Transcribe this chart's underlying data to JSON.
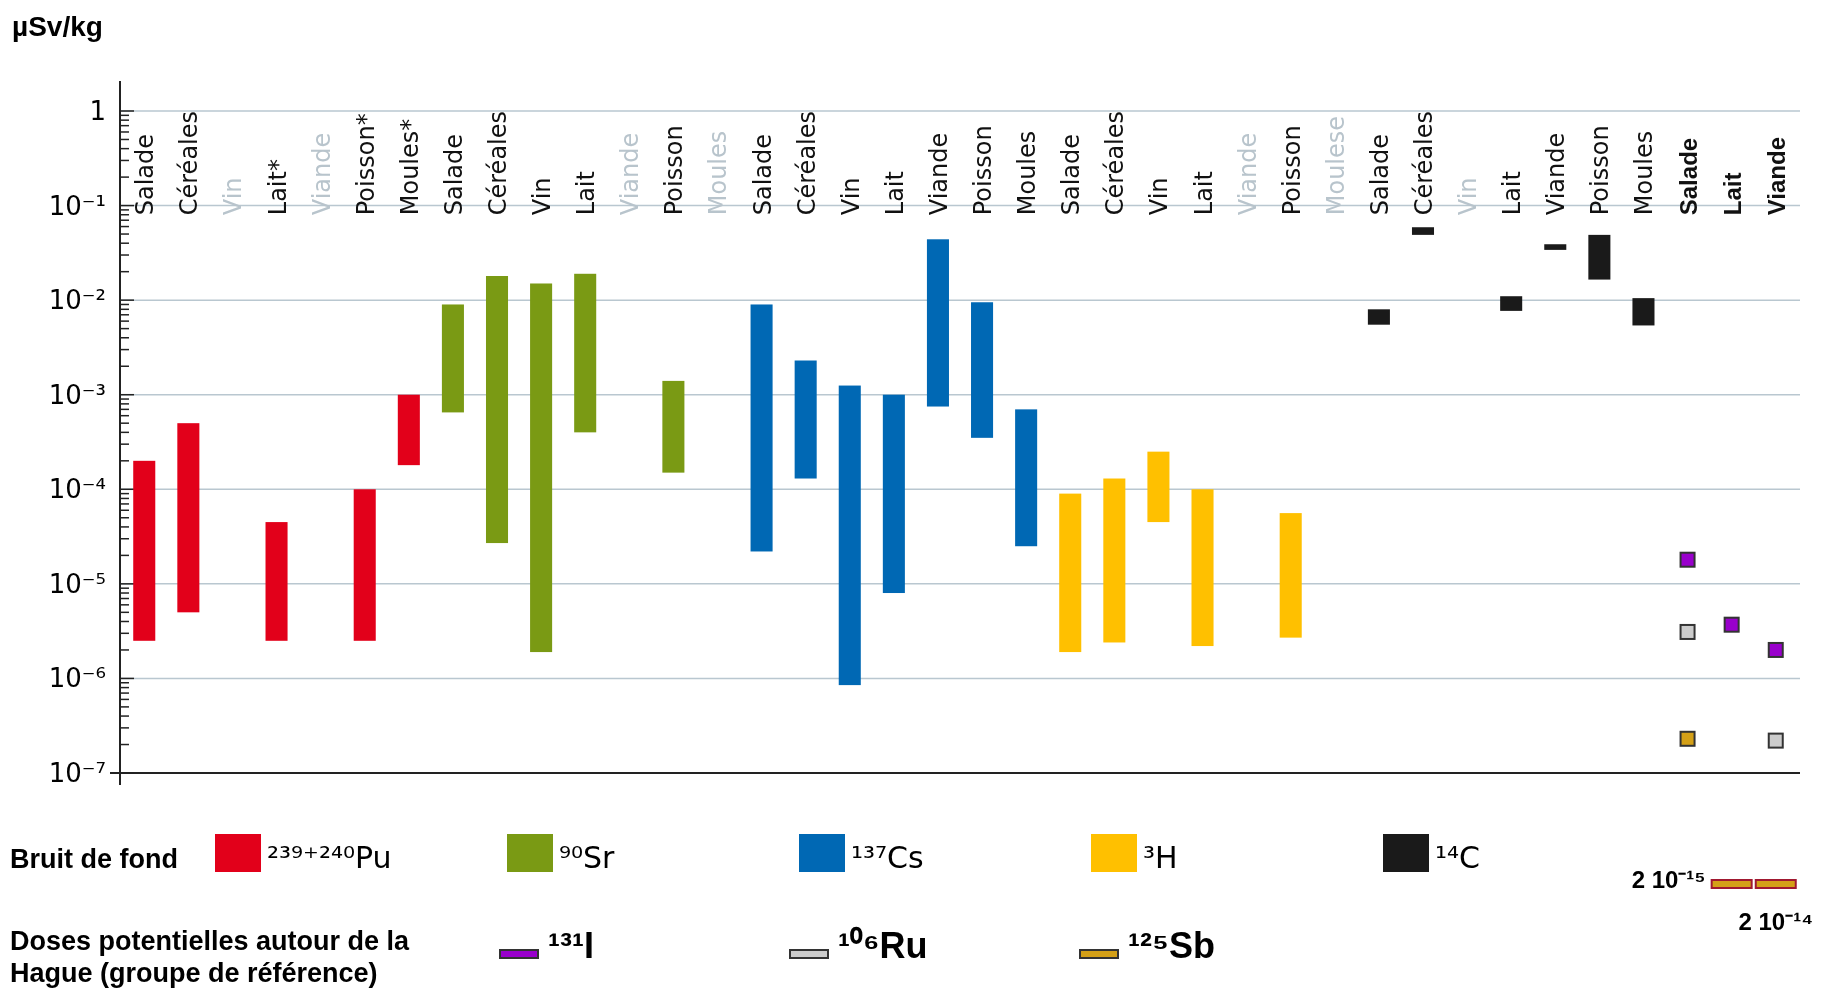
{
  "chart_data": {
    "type": "bar",
    "ylabel": "µSv/kg",
    "log": "y",
    "grid": "y",
    "legend": "bottom",
    "marker": "square",
    "categories": [
      "Salade",
      "Céréales",
      "Vin",
      "Lait*",
      "Viande",
      "Poisson*",
      "Moules*",
      "Salade",
      "Céréales",
      "Vin",
      "Lait",
      "Viande",
      "Poisson",
      "Moules",
      "Salade",
      "Céréales",
      "Vin",
      "Lait",
      "Viande",
      "Poisson",
      "Moules",
      "Salade",
      "Céréales",
      "Vin",
      "Lait",
      "Viande",
      "Poisson",
      "Moulese",
      "Salade",
      "Céréales",
      "Vin",
      "Lait",
      "Viande",
      "Poisson",
      "Moules",
      "Salade",
      "Lait",
      "Viande"
    ],
    "ylim": [
      1e-07,
      1
    ],
    "yticks": [
      {
        "value": 1e-07,
        "label": "10⁻⁷"
      },
      {
        "value": 2e-07,
        "label": null
      },
      {
        "value": 3e-07,
        "label": null
      },
      {
        "value": 4e-07,
        "label": null
      },
      {
        "value": 5e-07,
        "label": null
      },
      {
        "value": 6e-07,
        "label": null
      },
      {
        "value": 7e-07,
        "label": null
      },
      {
        "value": 8e-07,
        "label": null
      },
      {
        "value": 9e-07,
        "label": null
      },
      {
        "value": 1e-06,
        "label": "10⁻⁶"
      },
      {
        "value": 2e-06,
        "label": null
      },
      {
        "value": 3e-06,
        "label": null
      },
      {
        "value": 4e-06,
        "label": null
      },
      {
        "value": 5e-06,
        "label": null
      },
      {
        "value": 6e-06,
        "label": null
      },
      {
        "value": 7e-06,
        "label": null
      },
      {
        "value": 8e-06,
        "label": null
      },
      {
        "value": 9e-06,
        "label": null
      },
      {
        "value": 1e-05,
        "label": "10⁻⁵"
      },
      {
        "value": 2e-05,
        "label": null
      },
      {
        "value": 3e-05,
        "label": null
      },
      {
        "value": 4e-05,
        "label": null
      },
      {
        "value": 5e-05,
        "label": null
      },
      {
        "value": 6e-05,
        "label": null
      },
      {
        "value": 7e-05,
        "label": null
      },
      {
        "value": 8e-05,
        "label": null
      },
      {
        "value": 9e-05,
        "label": null
      },
      {
        "value": 0.0001,
        "label": "10⁻⁴"
      },
      {
        "value": 0.0002,
        "label": null
      },
      {
        "value": 0.0003,
        "label": null
      },
      {
        "value": 0.0004,
        "label": null
      },
      {
        "value": 0.0005,
        "label": null
      },
      {
        "value": 0.0006,
        "label": null
      },
      {
        "value": 0.0007,
        "label": null
      },
      {
        "value": 0.0008,
        "label": null
      },
      {
        "value": 0.0009,
        "label": null
      },
      {
        "value": 0.001,
        "label": "10⁻³"
      },
      {
        "value": 0.002,
        "label": null
      },
      {
        "value": 0.003,
        "label": null
      },
      {
        "value": 0.004,
        "label": null
      },
      {
        "value": 0.005,
        "label": null
      },
      {
        "value": 0.006,
        "label": null
      },
      {
        "value": 0.007,
        "label": null
      },
      {
        "value": 0.008,
        "label": null
      },
      {
        "value": 0.009,
        "label": null
      },
      {
        "value": 0.01,
        "label": "10⁻²"
      },
      {
        "value": 0.02,
        "label": null
      },
      {
        "value": 0.03,
        "label": null
      },
      {
        "value": 0.04,
        "label": null
      },
      {
        "value": 0.05,
        "label": null
      },
      {
        "value": 0.06,
        "label": null
      },
      {
        "value": 0.07,
        "label": null
      },
      {
        "value": 0.08,
        "label": null
      },
      {
        "value": 0.09,
        "label": null
      },
      {
        "value": 0.1,
        "label": "10⁻¹"
      },
      {
        "value": 0.2,
        "label": null
      },
      {
        "value": 0.3,
        "label": null
      },
      {
        "value": 0.4,
        "label": null
      },
      {
        "value": 0.5,
        "label": null
      },
      {
        "value": 0.6,
        "label": null
      },
      {
        "value": 0.7,
        "label": null
      },
      {
        "value": 0.8,
        "label": null
      },
      {
        "value": 0.9,
        "label": null
      },
      1
    ],
    "series": [
      {
        "name": "²³⁹⁺²⁴⁰Pu",
        "color": "#e2001a",
        "base": [
          2.5e-06,
          5e-06,
          null,
          2.5e-06,
          null,
          2.5e-06,
          0.00018,
          null,
          null,
          null,
          null,
          null,
          null,
          null,
          null,
          null,
          null,
          null,
          null,
          null,
          null,
          null,
          null,
          null,
          null,
          null,
          null,
          null,
          null,
          null,
          null,
          null,
          null,
          null,
          null,
          null,
          null,
          null
        ],
        "values": [
          0.0001975,
          0.000495,
          null,
          4.25e-05,
          null,
          9.75e-05,
          0.00082,
          null,
          null,
          null,
          null,
          null,
          null,
          null,
          null,
          null,
          null,
          null,
          null,
          null,
          null,
          null,
          null,
          null,
          null,
          null,
          null,
          null,
          null,
          null,
          null,
          null,
          null,
          null,
          null,
          null,
          null,
          null
        ]
      },
      {
        "name": "⁹⁰Sr",
        "color": "#7a9a14",
        "base": [
          null,
          null,
          null,
          null,
          null,
          null,
          null,
          0.00065,
          2.7e-05,
          1.9e-06,
          0.0004,
          null,
          0.00015,
          null,
          null,
          null,
          null,
          null,
          null,
          null,
          null,
          null,
          null,
          null,
          null,
          null,
          null,
          null,
          null,
          null,
          null,
          null,
          null,
          null,
          null,
          null,
          null,
          null
        ],
        "values": [
          null,
          null,
          null,
          null,
          null,
          null,
          null,
          0.00835,
          0.017973,
          0.0149981,
          0.0186,
          null,
          0.00125,
          null,
          null,
          null,
          null,
          null,
          null,
          null,
          null,
          null,
          null,
          null,
          null,
          null,
          null,
          null,
          null,
          null,
          null,
          null,
          null,
          null,
          null,
          null,
          null,
          null
        ]
      },
      {
        "name": "¹³⁷Cs",
        "color": "#0068b4",
        "base": [
          null,
          null,
          null,
          null,
          null,
          null,
          null,
          null,
          null,
          null,
          null,
          null,
          null,
          null,
          2.2e-05,
          0.00013,
          8.5e-07,
          8e-06,
          0.00075,
          0.00035,
          2.5e-05,
          null,
          null,
          null,
          null,
          null,
          null,
          null,
          null,
          null,
          null,
          null,
          null,
          null,
          null,
          null,
          null,
          null
        ],
        "values": [
          null,
          null,
          null,
          null,
          null,
          null,
          null,
          null,
          null,
          null,
          null,
          null,
          null,
          null,
          0.008978,
          0.00217,
          0.00124915,
          0.000992,
          0.04325,
          0.00915,
          0.000675,
          null,
          null,
          null,
          null,
          null,
          null,
          null,
          null,
          null,
          null,
          null,
          null,
          null,
          null,
          null,
          null,
          null
        ]
      },
      {
        "name": "³H",
        "color": "#ffc000",
        "base": [
          null,
          null,
          null,
          null,
          null,
          null,
          null,
          null,
          null,
          null,
          null,
          null,
          null,
          null,
          null,
          null,
          null,
          null,
          null,
          null,
          null,
          1.9e-06,
          2.4e-06,
          4.5e-05,
          2.2e-06,
          null,
          2.7e-06,
          null,
          null,
          null,
          null,
          null,
          null,
          null,
          null,
          null,
          null,
          null
        ],
        "values": [
          null,
          null,
          null,
          null,
          null,
          null,
          null,
          null,
          null,
          null,
          null,
          null,
          null,
          null,
          null,
          null,
          null,
          null,
          null,
          null,
          null,
          8.81e-05,
          0.0001276,
          0.000205,
          9.78e-05,
          null,
          5.33e-05,
          null,
          null,
          null,
          null,
          null,
          null,
          null,
          null,
          null,
          null,
          null
        ]
      },
      {
        "name": "¹⁴C",
        "color": "#1a1a1a",
        "base": [
          null,
          null,
          null,
          null,
          null,
          null,
          null,
          null,
          null,
          null,
          null,
          null,
          null,
          null,
          null,
          null,
          null,
          null,
          null,
          null,
          null,
          null,
          null,
          null,
          null,
          null,
          null,
          null,
          0.0055,
          0.049,
          null,
          0.0077,
          0.034,
          0.0165,
          0.0054,
          null,
          null,
          null
        ],
        "values": [
          null,
          null,
          null,
          null,
          null,
          null,
          null,
          null,
          null,
          null,
          null,
          null,
          null,
          null,
          null,
          null,
          null,
          null,
          null,
          null,
          null,
          null,
          null,
          null,
          null,
          null,
          null,
          null,
          0.0025,
          0.01,
          null,
          0.0033,
          0.005,
          0.0325,
          0.0051,
          null,
          null,
          null
        ]
      },
      {
        "name": "¹³¹I",
        "type": "scatter",
        "color": "#9900cc",
        "values": [
          null,
          null,
          null,
          null,
          null,
          null,
          null,
          null,
          null,
          null,
          null,
          null,
          null,
          null,
          null,
          null,
          null,
          null,
          null,
          null,
          null,
          null,
          null,
          null,
          null,
          null,
          null,
          null,
          null,
          null,
          null,
          null,
          null,
          null,
          null,
          1.8e-05,
          3.7e-06,
          2e-06
        ]
      },
      {
        "name": "¹⁰⁶Ru",
        "type": "scatter",
        "color": "#cccccc",
        "values": [
          null,
          null,
          null,
          null,
          null,
          null,
          null,
          null,
          null,
          null,
          null,
          null,
          null,
          null,
          null,
          null,
          null,
          null,
          null,
          null,
          null,
          null,
          null,
          null,
          null,
          null,
          null,
          null,
          null,
          null,
          null,
          null,
          null,
          null,
          null,
          3.1e-06,
          null,
          2.2e-07
        ]
      },
      {
        "name": "¹²⁵Sb",
        "type": "scatter",
        "color": "#d4a017",
        "values": [
          null,
          null,
          null,
          null,
          null,
          null,
          null,
          null,
          null,
          null,
          null,
          null,
          null,
          null,
          null,
          null,
          null,
          null,
          null,
          null,
          null,
          null,
          null,
          null,
          null,
          null,
          null,
          null,
          null,
          null,
          null,
          null,
          null,
          null,
          null,
          2.3e-07,
          null,
          null
        ]
      }
    ],
    "annotations": [
      "Bruit de fond",
      "Doses potentielles autour de la Hague (groupe de référence)",
      "2 10⁻¹⁵",
      "2 10⁻¹⁴"
    ]
  }
}
